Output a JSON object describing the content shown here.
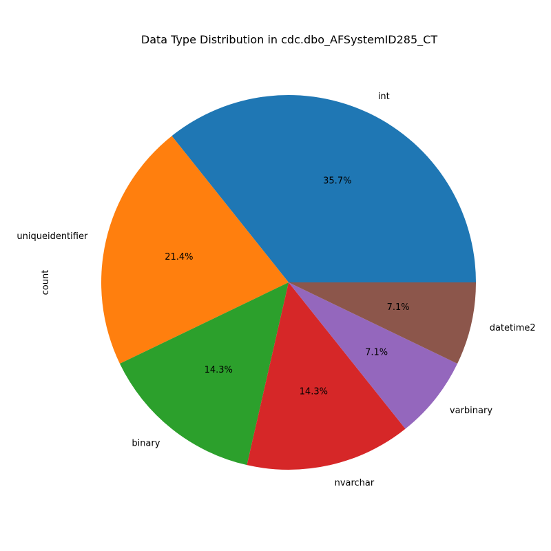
{
  "chart_data": {
    "type": "pie",
    "title": "Data Type Distribution in cdc.dbo_AFSystemID285_CT",
    "ylabel": "count",
    "categories": [
      "int",
      "uniqueidentifier",
      "binary",
      "nvarchar",
      "varbinary",
      "datetime2"
    ],
    "values": [
      5,
      3,
      2,
      2,
      1,
      1
    ],
    "percent_labels": [
      "35.7%",
      "21.4%",
      "14.3%",
      "14.3%",
      "7.1%",
      "7.1%"
    ],
    "colors": [
      "#1f77b4",
      "#ff7f0e",
      "#2ca02c",
      "#d62728",
      "#9467bd",
      "#8c564b"
    ],
    "start_angle_deg": 0,
    "direction": "counterclockwise"
  }
}
